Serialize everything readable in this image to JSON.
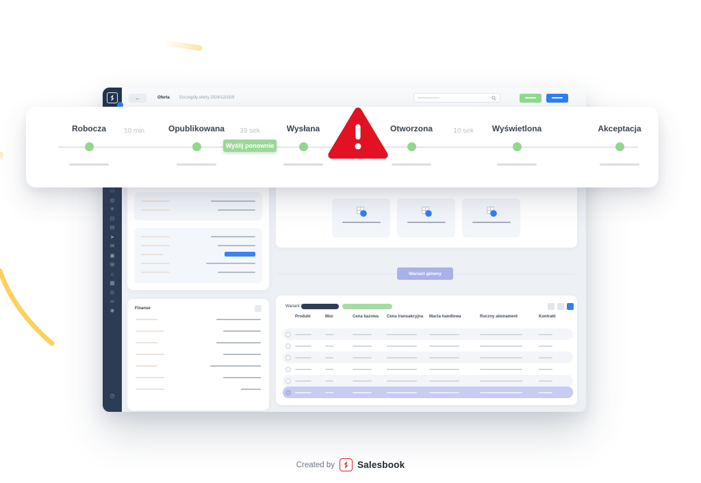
{
  "overlay": {
    "stages": [
      {
        "label": "Robocza"
      },
      {
        "label": "Opublikowana"
      },
      {
        "label": "Wysłana"
      },
      {
        "label": "Otworzona"
      },
      {
        "label": "Wyświetlona"
      },
      {
        "label": "Akceptacja"
      }
    ],
    "intervals": [
      {
        "label": "10 min"
      },
      {
        "label": "39 sek"
      },
      {
        "label": "10 sek"
      }
    ],
    "resend_button_label": "Wyślij ponownie",
    "alert_symbol": "!"
  },
  "app": {
    "topbar": {
      "back_arrow": "←",
      "title": "Oferta",
      "subtitle": "Szczegóły oferty 2024/12/15/9"
    },
    "sidebar": {
      "icons": [
        {
          "name": "folder-icon",
          "glyph": "▭"
        },
        {
          "name": "compass-icon",
          "glyph": "◎"
        },
        {
          "name": "gear-icon",
          "glyph": "✳"
        },
        {
          "name": "monitor-icon",
          "glyph": "⊡"
        },
        {
          "name": "briefcase-icon",
          "glyph": "⊟"
        },
        {
          "name": "send-icon",
          "glyph": "➤"
        },
        {
          "name": "mail-icon",
          "glyph": "✉"
        },
        {
          "name": "card-icon",
          "glyph": "▣"
        },
        {
          "name": "archive-icon",
          "glyph": "⊞"
        },
        {
          "name": "bell-icon",
          "glyph": "⌂"
        },
        {
          "name": "calculator-icon",
          "glyph": "▦"
        },
        {
          "name": "users-icon",
          "glyph": "⊙"
        },
        {
          "name": "handshake-icon",
          "glyph": "∞"
        },
        {
          "name": "settings-icon",
          "glyph": "✱"
        }
      ],
      "bottom_icon": {
        "name": "clock-icon",
        "glyph": "◷"
      }
    },
    "content": {
      "finance_card_title": "Finanse",
      "variant_main_button": "Wariant główny",
      "table": {
        "variant_label": "Wariant 1",
        "columns": [
          "Produkt",
          "Moc",
          "Cena bazowa",
          "Cena transakcyjna",
          "Marża handlowa",
          "Roczny abonament",
          "Kontrakt"
        ],
        "row_count": 6,
        "highlighted_row_index": 5
      }
    }
  },
  "footer": {
    "created_by": "Created by",
    "brand": "Salesbook"
  },
  "colors": {
    "accent_green": "#92d98f",
    "accent_blue": "#2e7ff2",
    "accent_purple": "#a9b1e9",
    "alert_red": "#e01223",
    "brand_red": "#da2032",
    "sidebar_navy": "#2d3c55",
    "highlight_row": "#c7ccf2",
    "decor_yellow": "#fbd25f"
  }
}
